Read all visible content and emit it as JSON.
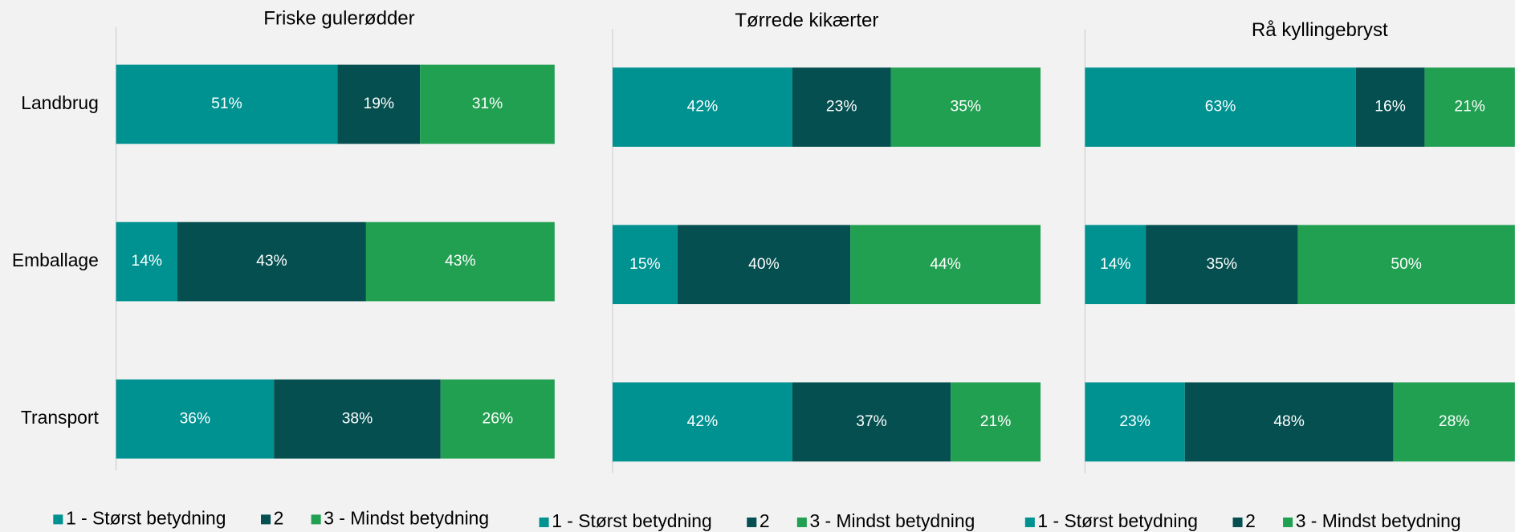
{
  "chart_data": [
    {
      "type": "bar",
      "orientation": "horizontal",
      "stacked": true,
      "title": "Friske gulerødder",
      "categories": [
        "Landbrug",
        "Emballage",
        "Transport"
      ],
      "series": [
        {
          "name": "1 - Størst betydning",
          "color": "#009191",
          "values": [
            51,
            14,
            36
          ],
          "value_labels": [
            "51%",
            "14%",
            "36%"
          ]
        },
        {
          "name": "2",
          "color": "#054f50",
          "values": [
            19,
            43,
            38
          ],
          "value_labels": [
            "19%",
            "43%",
            "38%"
          ]
        },
        {
          "name": "3 - Mindst betydning",
          "color": "#22a052",
          "values": [
            31,
            43,
            26
          ],
          "value_labels": [
            "31%",
            "43%",
            "26%"
          ]
        }
      ]
    },
    {
      "type": "bar",
      "orientation": "horizontal",
      "stacked": true,
      "title": "Tørrede kikærter",
      "series": [
        {
          "name": "1 - Størst betydning",
          "color": "#009191",
          "values": [
            42,
            15,
            42
          ],
          "value_labels": [
            "42%",
            "15%",
            "42%"
          ]
        },
        {
          "name": "2",
          "color": "#054f50",
          "values": [
            23,
            40,
            37
          ],
          "value_labels": [
            "23%",
            "40%",
            "37%"
          ]
        },
        {
          "name": "3 - Mindst betydning",
          "color": "#22a052",
          "values": [
            35,
            44,
            21
          ],
          "value_labels": [
            "35%",
            "44%",
            "21%"
          ]
        }
      ]
    },
    {
      "type": "bar",
      "orientation": "horizontal",
      "stacked": true,
      "title": "Rå kyllingebryst",
      "series": [
        {
          "name": "1 - Størst betydning",
          "color": "#009191",
          "values": [
            63,
            14,
            23
          ],
          "value_labels": [
            "63%",
            "14%",
            "23%"
          ]
        },
        {
          "name": "2",
          "color": "#054f50",
          "values": [
            16,
            35,
            48
          ],
          "value_labels": [
            "16%",
            "35%",
            "48%"
          ]
        },
        {
          "name": "3 - Mindst betydning",
          "color": "#22a052",
          "values": [
            21,
            50,
            28
          ],
          "value_labels": [
            "21%",
            "50%",
            "28%"
          ]
        }
      ]
    }
  ]
}
